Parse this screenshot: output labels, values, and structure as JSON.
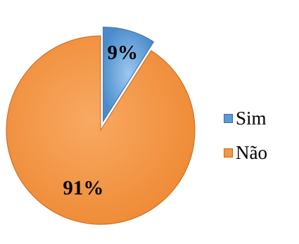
{
  "chart_data": {
    "type": "pie",
    "exploded": true,
    "start_angle_deg": 0,
    "categories": [
      "Sim",
      "Não"
    ],
    "values": [
      9,
      91
    ],
    "labels": [
      "9%",
      "91%"
    ],
    "colors": [
      "#5B9BD5",
      "#F79646"
    ],
    "edge_colors": [
      "#3B6E9E",
      "#C8661C"
    ],
    "legend_position": "right"
  }
}
